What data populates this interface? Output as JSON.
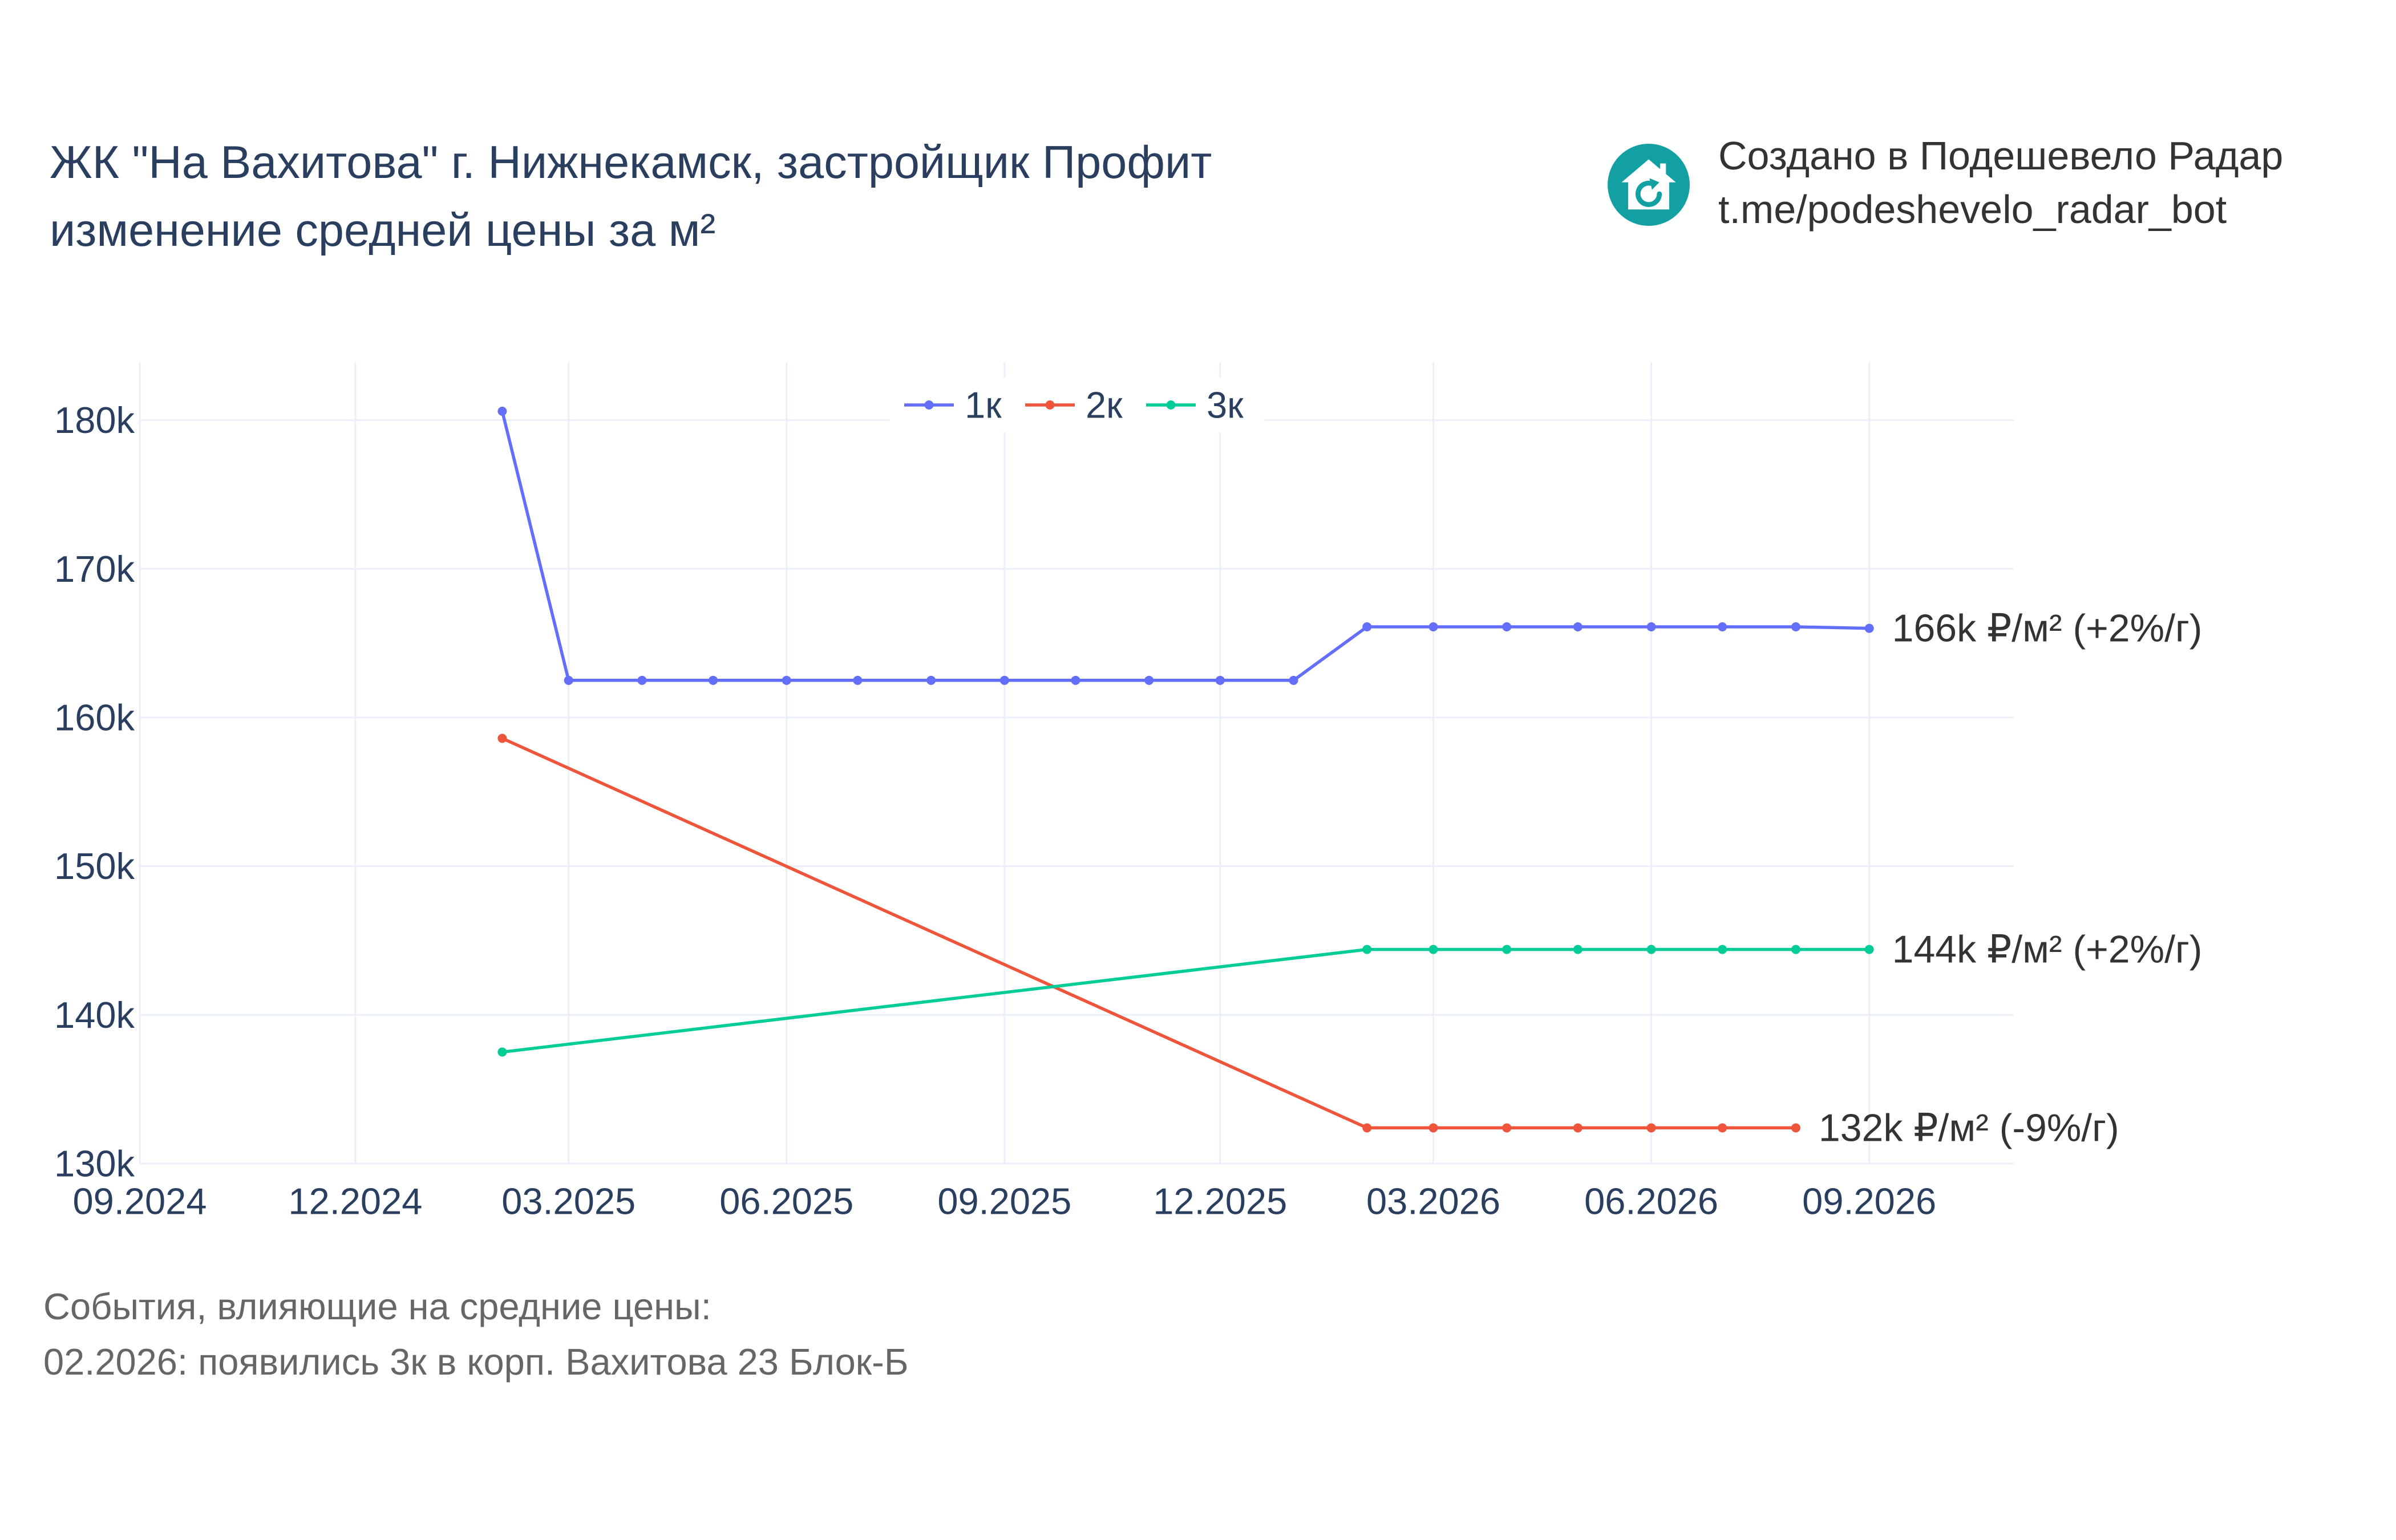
{
  "chart_data": {
    "type": "line",
    "title": "ЖК \"На Вахитова\" г. Нижнекамск, застройщик Профит",
    "subtitle": "изменение средней цены за м²",
    "x_ticks": [
      "09.2024",
      "12.2024",
      "03.2025",
      "06.2025",
      "09.2025",
      "12.2025",
      "03.2026",
      "06.2026",
      "09.2026"
    ],
    "y_ticks": [
      {
        "value": 130000,
        "label": "130k"
      },
      {
        "value": 140000,
        "label": "140k"
      },
      {
        "value": 150000,
        "label": "150k"
      },
      {
        "value": 160000,
        "label": "160k"
      },
      {
        "value": 170000,
        "label": "170k"
      },
      {
        "value": 180000,
        "label": "180k"
      }
    ],
    "xlim": [
      "09.2024",
      "11.2026"
    ],
    "ylim": [
      130000,
      183900
    ],
    "grid": true,
    "legend_placement": "top-center",
    "series": [
      {
        "name": "1к",
        "color": "#636efa",
        "x": [
          "02.2025",
          "03.2025",
          "04.2025",
          "05.2025",
          "06.2025",
          "07.2025",
          "08.2025",
          "09.2025",
          "10.2025",
          "11.2025",
          "12.2025",
          "01.2026",
          "02.2026",
          "03.2026",
          "04.2026",
          "05.2026",
          "06.2026",
          "07.2026",
          "08.2026",
          "09.2026"
        ],
        "y": [
          180600,
          162500,
          162500,
          162500,
          162500,
          162500,
          162500,
          162500,
          162500,
          162500,
          162500,
          162500,
          166100,
          166100,
          166100,
          166100,
          166100,
          166100,
          166100,
          166000
        ],
        "end_label": "166k ₽/м² (+2%/г)"
      },
      {
        "name": "2к",
        "color": "#ef553b",
        "x": [
          "02.2025",
          "02.2026",
          "03.2026",
          "04.2026",
          "05.2026",
          "06.2026",
          "07.2026",
          "08.2026"
        ],
        "y": [
          158600,
          132400,
          132400,
          132400,
          132400,
          132400,
          132400,
          132400
        ],
        "end_label": "132k ₽/м² (-9%/г)"
      },
      {
        "name": "3к",
        "color": "#00cc96",
        "x": [
          "02.2025",
          "02.2026",
          "03.2026",
          "04.2026",
          "05.2026",
          "06.2026",
          "07.2026",
          "08.2026",
          "09.2026"
        ],
        "y": [
          137500,
          144400,
          144400,
          144400,
          144400,
          144400,
          144400,
          144400,
          144400
        ],
        "end_label": "144k ₽/м² (+2%/г)"
      }
    ]
  },
  "attribution": {
    "line1": "Создано в Подешевело Радар",
    "line2": "t.me/podeshevelo_radar_bot",
    "logo_icon": "house-refresh-icon",
    "logo_color": "#13a0a3"
  },
  "footer": {
    "heading": "События, влияющие на средние цены:",
    "events": [
      "02.2026: появились 3к в корп. Вахитова 23 Блок-Б"
    ]
  }
}
